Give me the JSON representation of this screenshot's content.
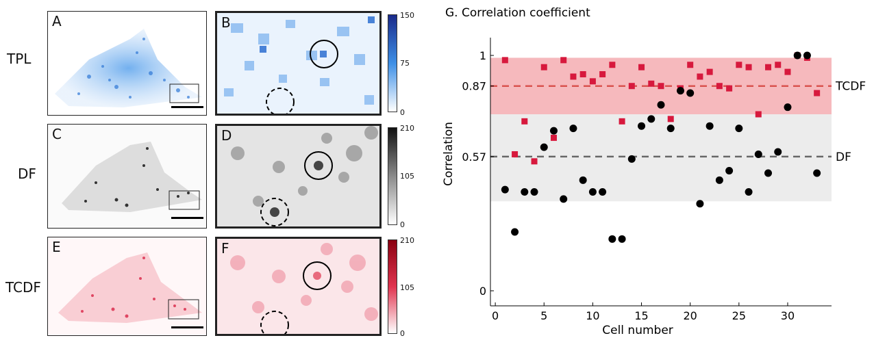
{
  "row_labels": [
    "TPL",
    "DF",
    "TCDF"
  ],
  "panel_letters": [
    "A",
    "B",
    "C",
    "D",
    "E",
    "F"
  ],
  "colorbars": [
    {
      "ticks": [
        "150",
        "75",
        "0"
      ],
      "top_color": "#1a2a8a",
      "mid_color": "#3d8fe6",
      "bottom_color": "#ffffff"
    },
    {
      "ticks": [
        "210",
        "105",
        "0"
      ],
      "top_color": "#111111",
      "mid_color": "#8a8a8a",
      "bottom_color": "#ffffff"
    },
    {
      "ticks": [
        "210",
        "105",
        "0"
      ],
      "top_color": "#8a0010",
      "mid_color": "#e0344f",
      "bottom_color": "#ffffff"
    }
  ],
  "colors": {
    "tpl": "#3d8fe6",
    "df": "#555555",
    "tcdf": "#e0344f",
    "tcdf_band": "#f6b9bd",
    "df_band": "#ececec"
  },
  "chart_data": {
    "type": "scatter",
    "title": "G. Correlation coefficient",
    "xlabel": "Cell number",
    "ylabel": "Correlation",
    "xlim": [
      -0.5,
      34.5
    ],
    "ylim": [
      0,
      1
    ],
    "xticks": [
      0,
      5,
      10,
      15,
      20,
      25,
      30
    ],
    "yticks": [
      0,
      0.57,
      0.87,
      1
    ],
    "ytick_labels": [
      "0",
      "0.57",
      "0.87",
      "1"
    ],
    "reference_lines": [
      {
        "label": "TCDF",
        "y": 0.87,
        "band": [
          0.75,
          0.99
        ],
        "color": "#d9534f"
      },
      {
        "label": "DF",
        "y": 0.57,
        "band": [
          0.38,
          0.75
        ],
        "color": "#666666"
      }
    ],
    "series": [
      {
        "marker": "square",
        "color": "#d7193d",
        "x": [
          1,
          2,
          3,
          4,
          5,
          6,
          7,
          8,
          9,
          10,
          11,
          12,
          13,
          14,
          15,
          16,
          17,
          18,
          19,
          20,
          21,
          22,
          23,
          24,
          25,
          26,
          27,
          28,
          29,
          30,
          31,
          32,
          33
        ],
        "y": [
          0.98,
          0.58,
          0.72,
          0.55,
          0.95,
          0.65,
          0.98,
          0.91,
          0.92,
          0.89,
          0.92,
          0.96,
          0.72,
          0.87,
          0.95,
          0.88,
          0.87,
          0.73,
          0.86,
          0.96,
          0.91,
          0.93,
          0.87,
          0.86,
          0.96,
          0.95,
          0.75,
          0.95,
          0.96,
          0.93,
          1.0,
          0.99,
          0.84
        ]
      },
      {
        "marker": "circle",
        "color": "#000000",
        "x": [
          1,
          2,
          3,
          4,
          5,
          6,
          7,
          8,
          9,
          10,
          11,
          12,
          13,
          14,
          15,
          16,
          17,
          18,
          19,
          20,
          21,
          22,
          23,
          24,
          25,
          26,
          27,
          28,
          29,
          30,
          31,
          32,
          33
        ],
        "y": [
          0.43,
          0.25,
          0.42,
          0.42,
          0.61,
          0.68,
          0.39,
          0.69,
          0.47,
          0.42,
          0.42,
          0.22,
          0.22,
          0.56,
          0.7,
          0.73,
          0.79,
          0.69,
          0.85,
          0.84,
          0.37,
          0.7,
          0.47,
          0.51,
          0.69,
          0.42,
          0.58,
          0.5,
          0.59,
          0.78,
          1.0,
          1.0,
          0.5
        ]
      }
    ]
  }
}
